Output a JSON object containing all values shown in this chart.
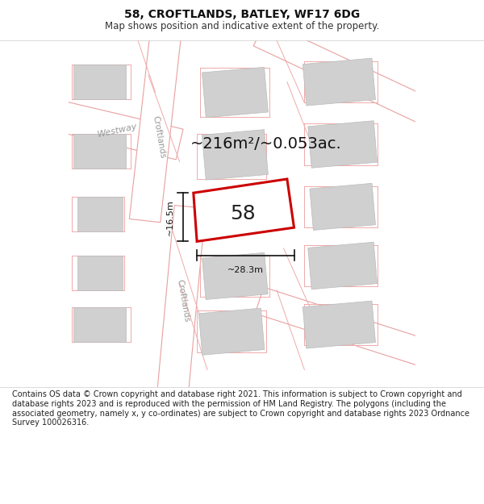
{
  "title": "58, CROFTLANDS, BATLEY, WF17 6DG",
  "subtitle": "Map shows position and indicative extent of the property.",
  "footer": "Contains OS data © Crown copyright and database right 2021. This information is subject to Crown copyright and database rights 2023 and is reproduced with the permission of HM Land Registry. The polygons (including the associated geometry, namely x, y co-ordinates) are subject to Crown copyright and database rights 2023 Ordnance Survey 100026316.",
  "area_label": "~216m²/~0.053ac.",
  "width_label": "~28.3m",
  "height_label": "~16.5m",
  "plot_number": "58",
  "bg_color": "#ffffff",
  "map_bg": "#f0f0f0",
  "road_color": "#ffffff",
  "block_color": "#d0d0d0",
  "road_outline_color": "#e8a0a0",
  "plot_color": "#cc0000",
  "plot_fill": "#ffffff",
  "road_label_color": "#999999",
  "dim_color": "#111111",
  "title_fontsize": 10,
  "subtitle_fontsize": 8.5,
  "footer_fontsize": 7.0,
  "area_fontsize": 14,
  "number_fontsize": 18,
  "dim_fontsize": 8,
  "road_label_fontsize": 7.5
}
